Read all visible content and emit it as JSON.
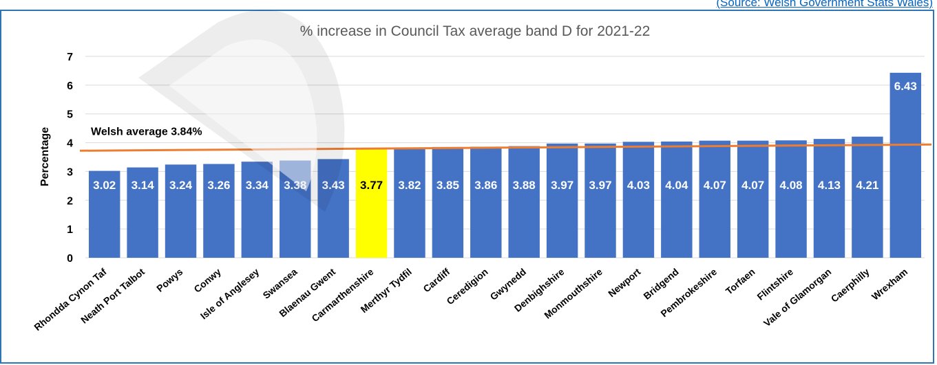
{
  "source": {
    "label": "(Source: Welsh Government Stats Wales)"
  },
  "colors": {
    "bar": "#4472c4",
    "highlight": "#ffff00",
    "average_line": "#ed7d31",
    "grid": "#d9d9d9",
    "frame": "#2e75b6"
  },
  "chart_data": {
    "type": "bar",
    "title": "% increase in Council Tax average band D for 2021-22",
    "xlabel": "",
    "ylabel": "Percentage",
    "ylim": [
      0,
      7
    ],
    "yticks": [
      "0",
      "1",
      "2",
      "3",
      "4",
      "5",
      "6",
      "7"
    ],
    "grid": true,
    "categories": [
      "Rhondda Cynon Taf",
      "Neath Port Talbot",
      "Powys",
      "Conwy",
      "Isle of Anglesey",
      "Swansea",
      "Blaenau Gwent",
      "Carmarthenshire",
      "Merthyr Tydfil",
      "Cardiff",
      "Ceredigion",
      "Gwynedd",
      "Denbighshire",
      "Monmouthshire",
      "Newport",
      "Bridgend",
      "Pembrokeshire",
      "Torfaen",
      "Flintshire",
      "Vale of Glamorgan",
      "Caerphilly",
      "Wrexham"
    ],
    "values": [
      3.02,
      3.14,
      3.24,
      3.26,
      3.34,
      3.38,
      3.43,
      3.77,
      3.82,
      3.85,
      3.86,
      3.88,
      3.97,
      3.97,
      4.03,
      4.04,
      4.07,
      4.07,
      4.08,
      4.13,
      4.21,
      6.43
    ],
    "data_labels": [
      "3.02",
      "3.14",
      "3.24",
      "3.26",
      "3.34",
      "3.38",
      "3.43",
      "3.77",
      "3.82",
      "3.85",
      "3.86",
      "3.88",
      "3.97",
      "3.97",
      "4.03",
      "4.04",
      "4.07",
      "4.07",
      "4.08",
      "4.13",
      "4.21",
      "6.43"
    ],
    "highlight_category": "Carmarthenshire",
    "average_line": {
      "value": 3.84,
      "label": "Welsh average 3.84%"
    }
  }
}
